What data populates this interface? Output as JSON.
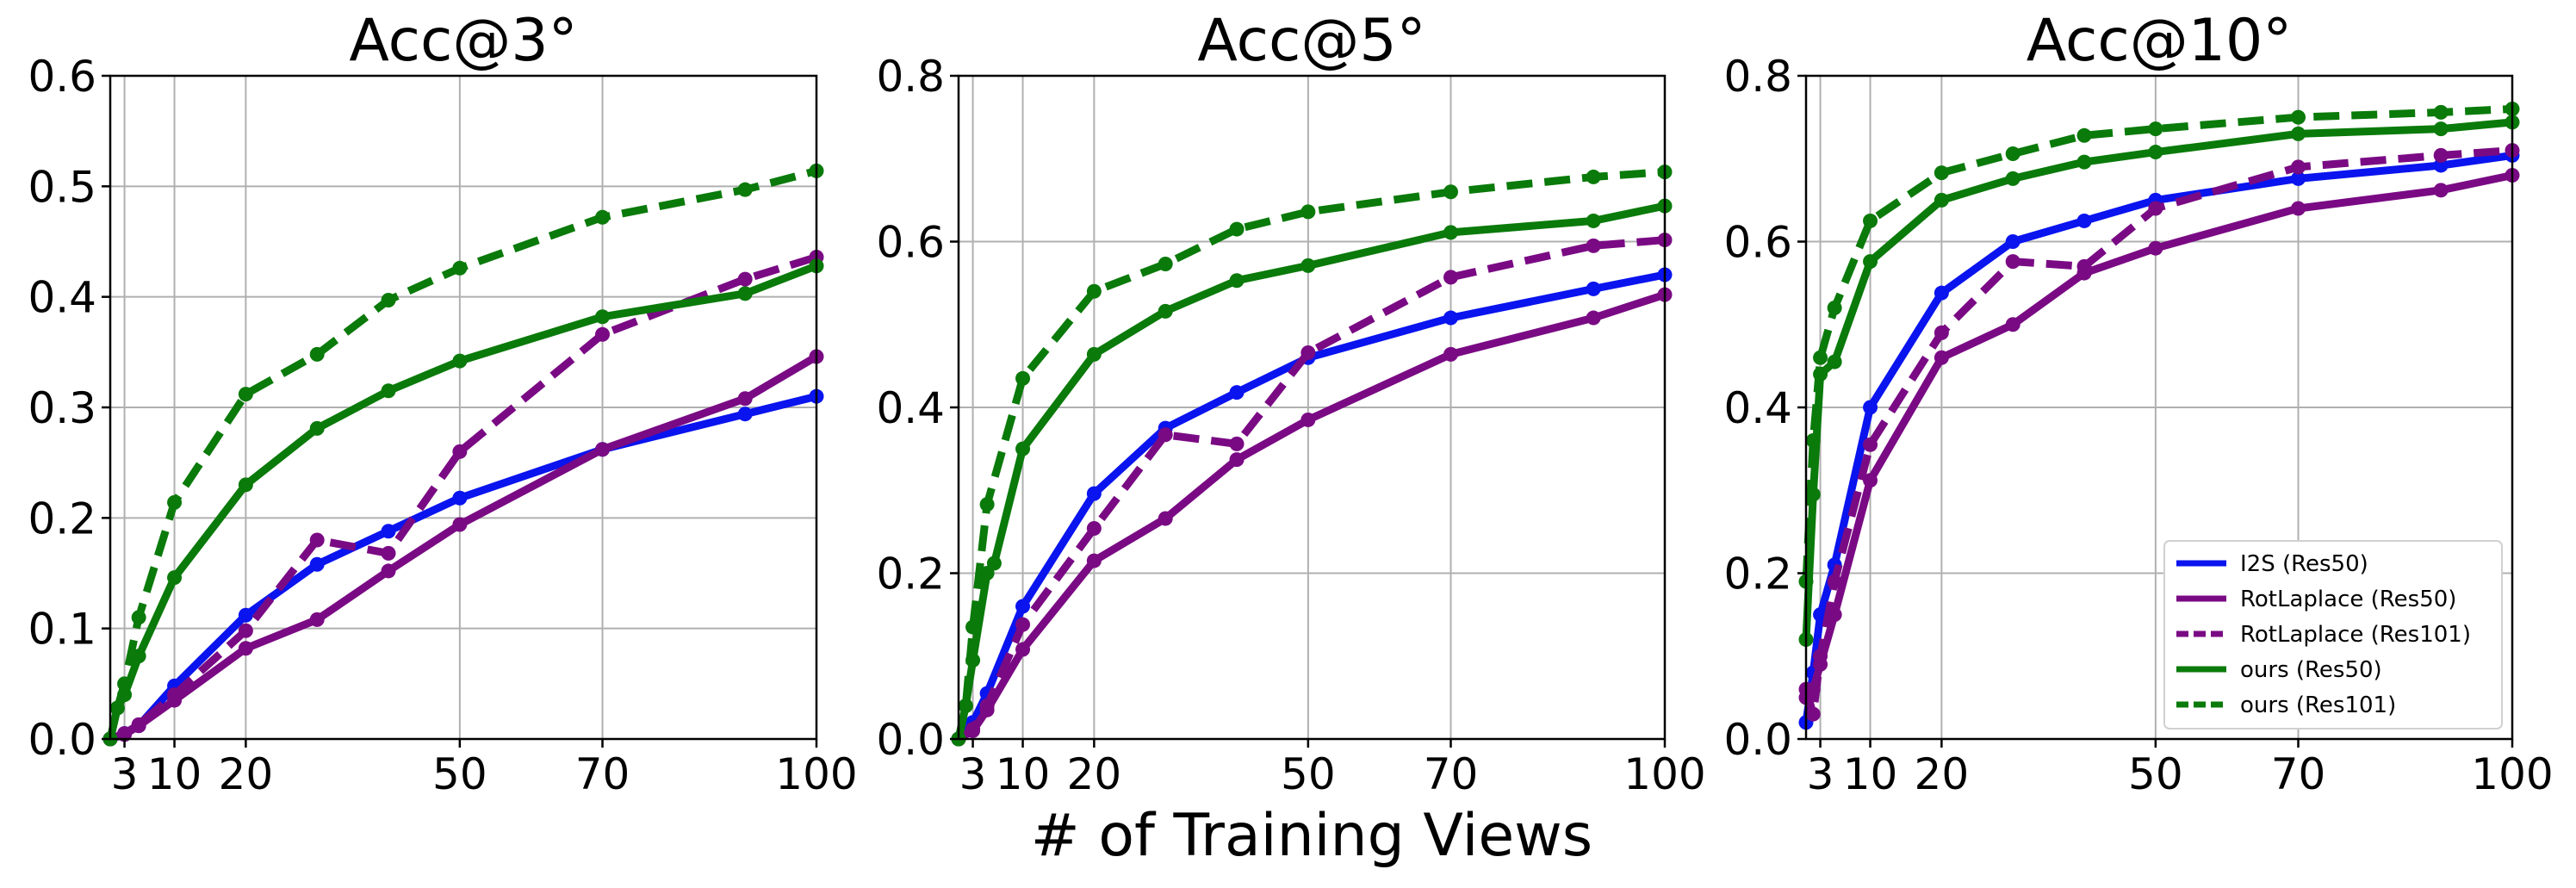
{
  "chart_data": {
    "type": "line",
    "xlabel": "# of Training Views",
    "x_ticks": [
      3,
      10,
      20,
      50,
      70,
      100
    ],
    "xlim": [
      1,
      100
    ],
    "legend_position": "lower-right",
    "legend_panel": 2,
    "series_styles": [
      {
        "name": "I2S (Res50)",
        "color": "#0a14ee",
        "dash": "solid"
      },
      {
        "name": "RotLaplace (Res50)",
        "color": "#7a0a84",
        "dash": "solid"
      },
      {
        "name": "RotLaplace (Res101)",
        "color": "#7a0a84",
        "dash": "dashed"
      },
      {
        "name": "ours (Res50)",
        "color": "#0a7a0a",
        "dash": "solid"
      },
      {
        "name": "ours (Res101)",
        "color": "#0a7a0a",
        "dash": "dashed"
      }
    ],
    "panels": [
      {
        "title": "Acc@3°",
        "ylim": [
          0,
          0.6
        ],
        "y_ticks": [
          0.0,
          0.1,
          0.2,
          0.3,
          0.4,
          0.5,
          0.6
        ],
        "series": [
          {
            "name": "I2S (Res50)",
            "x": [
              1,
              3,
              5,
              10,
              20,
              30,
              40,
              50,
              70,
              90,
              100
            ],
            "values": [
              0.0,
              0.005,
              0.012,
              0.048,
              0.112,
              0.158,
              0.188,
              0.218,
              0.262,
              0.294,
              0.31
            ]
          },
          {
            "name": "RotLaplace (Res50)",
            "x": [
              1,
              3,
              5,
              10,
              20,
              30,
              40,
              50,
              70,
              90,
              100
            ],
            "values": [
              0.0,
              0.004,
              0.012,
              0.035,
              0.082,
              0.108,
              0.152,
              0.194,
              0.262,
              0.308,
              0.346
            ]
          },
          {
            "name": "RotLaplace (Res101)",
            "x": [
              1,
              3,
              5,
              10,
              20,
              30,
              40,
              50,
              70,
              90,
              100
            ],
            "values": [
              0.0,
              0.005,
              0.013,
              0.04,
              0.098,
              0.18,
              0.168,
              0.26,
              0.366,
              0.416,
              0.436
            ]
          },
          {
            "name": "ours (Res50)",
            "x": [
              1,
              2,
              3,
              5,
              10,
              20,
              30,
              40,
              50,
              70,
              90,
              100
            ],
            "values": [
              0.0,
              0.028,
              0.04,
              0.075,
              0.146,
              0.23,
              0.281,
              0.315,
              0.342,
              0.382,
              0.403,
              0.428
            ]
          },
          {
            "name": "ours (Res101)",
            "x": [
              1,
              2,
              3,
              5,
              10,
              20,
              30,
              40,
              50,
              70,
              90,
              100
            ],
            "values": [
              0.0,
              0.028,
              0.05,
              0.11,
              0.214,
              0.312,
              0.348,
              0.397,
              0.426,
              0.472,
              0.497,
              0.514
            ]
          }
        ]
      },
      {
        "title": "Acc@5°",
        "ylim": [
          0,
          0.8
        ],
        "y_ticks": [
          0.0,
          0.2,
          0.4,
          0.6,
          0.8
        ],
        "series": [
          {
            "name": "I2S (Res50)",
            "x": [
              1,
              3,
              5,
              10,
              20,
              30,
              40,
              50,
              70,
              90,
              100
            ],
            "values": [
              0.0,
              0.02,
              0.055,
              0.16,
              0.296,
              0.375,
              0.418,
              0.46,
              0.508,
              0.543,
              0.56
            ]
          },
          {
            "name": "RotLaplace (Res50)",
            "x": [
              1,
              3,
              5,
              10,
              20,
              30,
              40,
              50,
              70,
              90,
              100
            ],
            "values": [
              0.0,
              0.01,
              0.035,
              0.108,
              0.215,
              0.266,
              0.337,
              0.385,
              0.464,
              0.508,
              0.536
            ]
          },
          {
            "name": "RotLaplace (Res101)",
            "x": [
              1,
              3,
              5,
              10,
              20,
              30,
              40,
              50,
              70,
              90,
              100
            ],
            "values": [
              0.0,
              0.012,
              0.04,
              0.138,
              0.254,
              0.367,
              0.356,
              0.466,
              0.557,
              0.595,
              0.602
            ]
          },
          {
            "name": "ours (Res50)",
            "x": [
              1,
              2,
              3,
              5,
              6,
              10,
              20,
              30,
              40,
              50,
              70,
              90,
              100
            ],
            "values": [
              0.0,
              0.04,
              0.095,
              0.2,
              0.212,
              0.35,
              0.464,
              0.516,
              0.553,
              0.571,
              0.611,
              0.625,
              0.643
            ]
          },
          {
            "name": "ours (Res101)",
            "x": [
              1,
              2,
              3,
              5,
              10,
              20,
              30,
              40,
              50,
              70,
              90,
              100
            ],
            "values": [
              0.0,
              0.04,
              0.135,
              0.283,
              0.435,
              0.54,
              0.573,
              0.615,
              0.636,
              0.66,
              0.678,
              0.684
            ]
          }
        ]
      },
      {
        "title": "Acc@10°",
        "ylim": [
          0,
          0.8
        ],
        "y_ticks": [
          0.0,
          0.2,
          0.4,
          0.6,
          0.8
        ],
        "series": [
          {
            "name": "I2S (Res50)",
            "x": [
              1,
              2,
              3,
              5,
              10,
              20,
              30,
              40,
              50,
              70,
              90,
              100
            ],
            "values": [
              0.02,
              0.08,
              0.15,
              0.21,
              0.4,
              0.538,
              0.6,
              0.625,
              0.65,
              0.676,
              0.692,
              0.704
            ]
          },
          {
            "name": "RotLaplace (Res50)",
            "x": [
              1,
              2,
              3,
              5,
              10,
              20,
              30,
              40,
              50,
              70,
              90,
              100
            ],
            "values": [
              0.05,
              0.06,
              0.09,
              0.15,
              0.312,
              0.46,
              0.5,
              0.562,
              0.592,
              0.64,
              0.662,
              0.68
            ]
          },
          {
            "name": "RotLaplace (Res101)",
            "x": [
              1,
              2,
              3,
              5,
              10,
              20,
              30,
              40,
              50,
              70,
              90,
              100
            ],
            "values": [
              0.06,
              0.03,
              0.1,
              0.19,
              0.355,
              0.49,
              0.576,
              0.57,
              0.64,
              0.69,
              0.704,
              0.71
            ]
          },
          {
            "name": "ours (Res50)",
            "x": [
              1,
              2,
              3,
              5,
              10,
              20,
              30,
              40,
              50,
              70,
              90,
              100
            ],
            "values": [
              0.12,
              0.295,
              0.44,
              0.455,
              0.576,
              0.65,
              0.676,
              0.696,
              0.708,
              0.73,
              0.736,
              0.744
            ]
          },
          {
            "name": "ours (Res101)",
            "x": [
              1,
              2,
              3,
              5,
              10,
              20,
              30,
              40,
              50,
              70,
              90,
              100
            ],
            "values": [
              0.19,
              0.36,
              0.46,
              0.52,
              0.625,
              0.683,
              0.706,
              0.728,
              0.736,
              0.75,
              0.756,
              0.76
            ]
          }
        ]
      }
    ]
  }
}
